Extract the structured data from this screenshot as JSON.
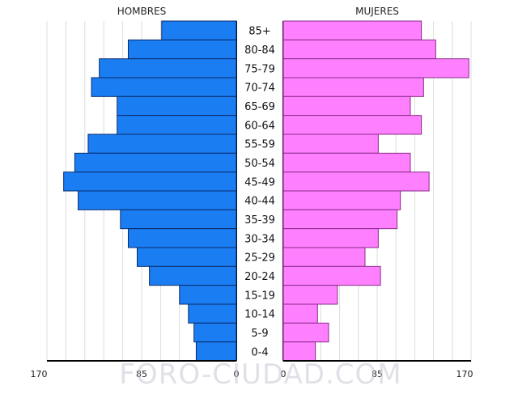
{
  "watermark": "FORO-CIUDAD.COM",
  "chart_data": {
    "type": "bar",
    "orientation": "horizontal-population-pyramid",
    "grid": true,
    "categories": [
      "85+",
      "80-84",
      "75-79",
      "70-74",
      "65-69",
      "60-64",
      "55-59",
      "50-54",
      "45-49",
      "40-44",
      "35-39",
      "30-34",
      "25-29",
      "20-24",
      "15-19",
      "10-14",
      "5-9",
      "0-4"
    ],
    "series": [
      {
        "name": "HOMBRES",
        "color": "#1a7ef2",
        "values": [
          67,
          97,
          123,
          130,
          107,
          107,
          133,
          145,
          155,
          142,
          104,
          97,
          89,
          78,
          51,
          43,
          38,
          36
        ],
        "xlim": [
          170,
          0
        ],
        "ticks": [
          "170",
          "85",
          "0"
        ]
      },
      {
        "name": "MUJERES",
        "color": "#ff80ff",
        "values": [
          125,
          138,
          168,
          127,
          115,
          125,
          86,
          115,
          132,
          106,
          103,
          86,
          74,
          88,
          49,
          31,
          41,
          29
        ],
        "xlim": [
          0,
          170
        ],
        "ticks": [
          "0",
          "85",
          "170"
        ]
      }
    ]
  }
}
